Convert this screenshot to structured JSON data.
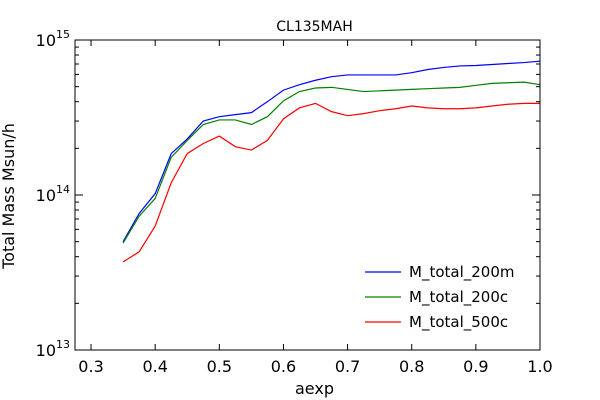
{
  "chart_data": {
    "type": "line",
    "title": "CL135MAH",
    "xlabel": "aexp",
    "ylabel": "Total Mass Msun/h",
    "xlim": [
      0.275,
      1.0
    ],
    "ylim": [
      10000000000000.0,
      1000000000000000.0
    ],
    "yscale": "log",
    "grid": false,
    "legend_position": "lower-right",
    "x_ticks": [
      0.3,
      0.4,
      0.5,
      0.6,
      0.7,
      0.8,
      0.9,
      1.0
    ],
    "x_tick_labels": [
      "0.3",
      "0.4",
      "0.5",
      "0.6",
      "0.7",
      "0.8",
      "0.9",
      "1.0"
    ],
    "y_ticks": [
      {
        "value": 10000000000000.0,
        "base": "10",
        "exp": "13"
      },
      {
        "value": 100000000000000.0,
        "base": "10",
        "exp": "14"
      },
      {
        "value": 1000000000000000.0,
        "base": "10",
        "exp": "15"
      }
    ],
    "series": [
      {
        "name": "M_total_200m",
        "color": "#0000ff",
        "x": [
          0.35,
          0.375,
          0.4,
          0.425,
          0.45,
          0.475,
          0.5,
          0.525,
          0.55,
          0.575,
          0.6,
          0.625,
          0.65,
          0.675,
          0.7,
          0.725,
          0.75,
          0.775,
          0.8,
          0.825,
          0.85,
          0.875,
          0.9,
          0.925,
          0.95,
          0.975,
          1.0
        ],
        "y": [
          50000000000000.0,
          76000000000000.0,
          102000000000000.0,
          185000000000000.0,
          230000000000000.0,
          300000000000000.0,
          320000000000000.0,
          330000000000000.0,
          340000000000000.0,
          400000000000000.0,
          475000000000000.0,
          515000000000000.0,
          550000000000000.0,
          580000000000000.0,
          595000000000000.0,
          595000000000000.0,
          595000000000000.0,
          595000000000000.0,
          615000000000000.0,
          645000000000000.0,
          665000000000000.0,
          680000000000000.0,
          685000000000000.0,
          695000000000000.0,
          705000000000000.0,
          715000000000000.0,
          730000000000000.0
        ]
      },
      {
        "name": "M_total_200c",
        "color": "#008000",
        "x": [
          0.35,
          0.375,
          0.4,
          0.425,
          0.45,
          0.475,
          0.5,
          0.525,
          0.55,
          0.575,
          0.6,
          0.625,
          0.65,
          0.675,
          0.7,
          0.725,
          0.75,
          0.775,
          0.8,
          0.825,
          0.85,
          0.875,
          0.9,
          0.925,
          0.95,
          0.975,
          1.0
        ],
        "y": [
          49000000000000.0,
          73000000000000.0,
          95000000000000.0,
          175000000000000.0,
          225000000000000.0,
          285000000000000.0,
          305000000000000.0,
          305000000000000.0,
          285000000000000.0,
          320000000000000.0,
          405000000000000.0,
          465000000000000.0,
          490000000000000.0,
          495000000000000.0,
          480000000000000.0,
          465000000000000.0,
          470000000000000.0,
          475000000000000.0,
          480000000000000.0,
          485000000000000.0,
          490000000000000.0,
          495000000000000.0,
          510000000000000.0,
          525000000000000.0,
          530000000000000.0,
          535000000000000.0,
          515000000000000.0
        ]
      },
      {
        "name": "M_total_500c",
        "color": "#ff0000",
        "x": [
          0.35,
          0.375,
          0.4,
          0.425,
          0.45,
          0.475,
          0.5,
          0.525,
          0.55,
          0.575,
          0.6,
          0.625,
          0.65,
          0.675,
          0.7,
          0.725,
          0.75,
          0.775,
          0.8,
          0.825,
          0.85,
          0.875,
          0.9,
          0.925,
          0.95,
          0.975,
          1.0
        ],
        "y": [
          37000000000000.0,
          43000000000000.0,
          63000000000000.0,
          120000000000000.0,
          185000000000000.0,
          215000000000000.0,
          240000000000000.0,
          205000000000000.0,
          195000000000000.0,
          225000000000000.0,
          310000000000000.0,
          365000000000000.0,
          390000000000000.0,
          345000000000000.0,
          325000000000000.0,
          335000000000000.0,
          350000000000000.0,
          360000000000000.0,
          375000000000000.0,
          365000000000000.0,
          360000000000000.0,
          360000000000000.0,
          365000000000000.0,
          375000000000000.0,
          385000000000000.0,
          390000000000000.0,
          390000000000000.0
        ]
      }
    ]
  }
}
